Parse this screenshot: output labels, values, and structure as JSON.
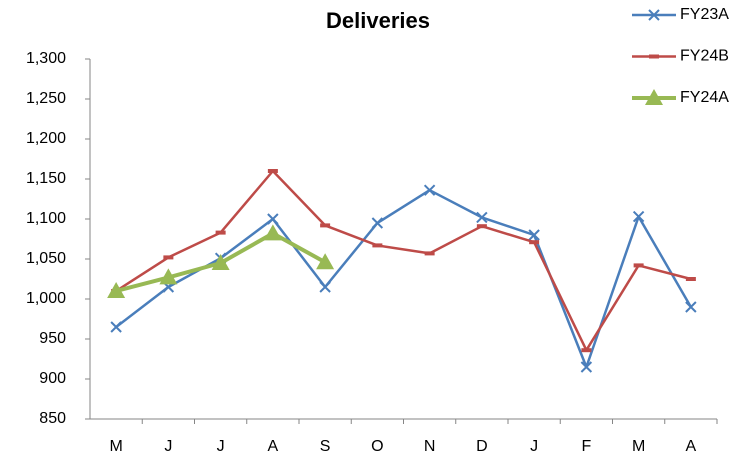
{
  "chart_data": {
    "type": "line",
    "title": "Deliveries",
    "categories": [
      "M",
      "J",
      "J",
      "A",
      "S",
      "O",
      "N",
      "D",
      "J",
      "F",
      "M",
      "A"
    ],
    "series": [
      {
        "name": "FY23A",
        "color": "#4a7ebb",
        "marker": "x",
        "values": [
          965,
          1015,
          1051,
          1100,
          1015,
          1095,
          1136,
          1102,
          1080,
          915,
          1103,
          990
        ]
      },
      {
        "name": "FY24B",
        "color": "#be4b48",
        "marker": "dash",
        "values": [
          1010,
          1052,
          1083,
          1160,
          1092,
          1067,
          1057,
          1091,
          1071,
          936,
          1042,
          1025
        ]
      },
      {
        "name": "FY24A",
        "color": "#98b954",
        "marker": "triangle",
        "values": [
          1010,
          1027,
          1045,
          1082,
          1046,
          null,
          null,
          null,
          null,
          null,
          null,
          null
        ]
      }
    ],
    "ylim": [
      850,
      1300
    ],
    "yticks": [
      850,
      900,
      950,
      {
        "value": 1000,
        "label": "1,000"
      },
      {
        "value": 1050,
        "label": "1,050"
      },
      {
        "value": 1100,
        "label": "1,100"
      },
      {
        "value": 1150,
        "label": "1,150"
      },
      {
        "value": 1200,
        "label": "1,200"
      },
      {
        "value": 1250,
        "label": "1,250"
      },
      {
        "value": 1300,
        "label": "1,300"
      }
    ],
    "grid": false
  }
}
